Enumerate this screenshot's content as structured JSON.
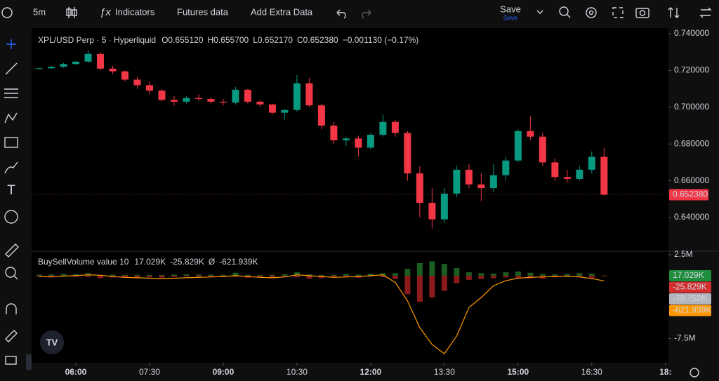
{
  "toolbar": {
    "interval": "5m",
    "indicators": "Indicators",
    "futures": "Futures data",
    "extra": "Add Extra Data",
    "save": "Save",
    "save_sub": "Save"
  },
  "chart_data": {
    "type": "candlestick",
    "title": "XPL/USD Perp · 5 · Hyperliquid",
    "ohlc_legend": [
      {
        "key": "O",
        "value": "0.655120"
      },
      {
        "key": "H",
        "value": "0.655700"
      },
      {
        "key": "L",
        "value": "0.652170"
      },
      {
        "key": "C",
        "value": "0.652380"
      }
    ],
    "change": "−0.001130 (−0.17%)",
    "up_color": "#089981",
    "down_color": "#f23645",
    "x": [
      5.25,
      5.5,
      5.75,
      6,
      6.25,
      6.5,
      6.75,
      7,
      7.25,
      7.5,
      7.75,
      8,
      8.25,
      8.5,
      8.75,
      9,
      9.25,
      9.5,
      9.75,
      10,
      10.25,
      10.5,
      10.75,
      11,
      11.25,
      11.5,
      11.75,
      12,
      12.25,
      12.5,
      12.75,
      13,
      13.25,
      13.5,
      13.75,
      14,
      14.25,
      14.5,
      14.75,
      15,
      15.25,
      15.5,
      15.75,
      16,
      16.25,
      16.5,
      16.75
    ],
    "open": [
      0.721,
      0.7212,
      0.722,
      0.7235,
      0.7248,
      0.729,
      0.721,
      0.7195,
      0.715,
      0.712,
      0.709,
      0.704,
      0.703,
      0.705,
      0.7045,
      0.703,
      0.7025,
      0.7095,
      0.703,
      0.7015,
      0.697,
      0.6985,
      0.713,
      0.701,
      0.69,
      0.682,
      0.683,
      0.678,
      0.685,
      0.692,
      0.686,
      0.664,
      0.648,
      0.639,
      0.653,
      0.666,
      0.658,
      0.656,
      0.663,
      0.671,
      0.687,
      0.684,
      0.67,
      0.662,
      0.661,
      0.666,
      0.673
    ],
    "high": [
      0.7215,
      0.7225,
      0.724,
      0.725,
      0.731,
      0.73,
      0.7225,
      0.72,
      0.7165,
      0.714,
      0.71,
      0.706,
      0.706,
      0.707,
      0.7055,
      0.7045,
      0.711,
      0.71,
      0.704,
      0.702,
      0.699,
      0.7175,
      0.716,
      0.702,
      0.692,
      0.684,
      0.6845,
      0.686,
      0.696,
      0.693,
      0.687,
      0.668,
      0.656,
      0.656,
      0.668,
      0.669,
      0.664,
      0.669,
      0.673,
      0.688,
      0.695,
      0.686,
      0.672,
      0.666,
      0.668,
      0.676,
      0.678
    ],
    "low": [
      0.7205,
      0.7208,
      0.7215,
      0.723,
      0.724,
      0.72,
      0.718,
      0.714,
      0.71,
      0.707,
      0.703,
      0.701,
      0.702,
      0.7035,
      0.702,
      0.701,
      0.7015,
      0.702,
      0.7,
      0.696,
      0.693,
      0.6975,
      0.7,
      0.688,
      0.68,
      0.679,
      0.673,
      0.677,
      0.684,
      0.684,
      0.66,
      0.64,
      0.634,
      0.637,
      0.651,
      0.656,
      0.649,
      0.654,
      0.66,
      0.67,
      0.682,
      0.668,
      0.66,
      0.659,
      0.66,
      0.664,
      0.652
    ],
    "close": [
      0.7212,
      0.722,
      0.7235,
      0.7248,
      0.729,
      0.721,
      0.7195,
      0.715,
      0.712,
      0.709,
      0.704,
      0.703,
      0.705,
      0.7045,
      0.703,
      0.7025,
      0.7095,
      0.703,
      0.7015,
      0.697,
      0.6985,
      0.713,
      0.701,
      0.69,
      0.682,
      0.683,
      0.678,
      0.685,
      0.692,
      0.686,
      0.664,
      0.648,
      0.639,
      0.653,
      0.666,
      0.658,
      0.656,
      0.663,
      0.671,
      0.687,
      0.684,
      0.67,
      0.662,
      0.661,
      0.666,
      0.673,
      0.6524
    ],
    "last_label": "0.652380",
    "xlim": [
      5.1,
      18.06
    ],
    "xticks": [
      {
        "value": 6,
        "label": "06:00"
      },
      {
        "value": 7.5,
        "label": "07:30"
      },
      {
        "value": 9,
        "label": "09:00"
      },
      {
        "value": 10.5,
        "label": "10:30"
      },
      {
        "value": 12,
        "label": "12:00"
      },
      {
        "value": 13.5,
        "label": "13:30"
      },
      {
        "value": 15,
        "label": "15:00"
      },
      {
        "value": 16.5,
        "label": "16:30"
      },
      {
        "value": 18,
        "label": "18:"
      }
    ],
    "ylim": [
      0.62206,
      0.74305
    ],
    "yticks": [
      {
        "value": 0.74,
        "label": "0.740000"
      },
      {
        "value": 0.72,
        "label": "0.720000"
      },
      {
        "value": 0.7,
        "label": "0.700000"
      },
      {
        "value": 0.68,
        "label": "0.680000"
      },
      {
        "value": 0.66,
        "label": "0.660000"
      },
      {
        "value": 0.64,
        "label": "0.640000"
      }
    ],
    "indicator": {
      "title": "BuySellVolume value 10",
      "avg_symbol": "Ø",
      "ylim": [
        -10380000,
        2920000
      ],
      "yticks": [
        {
          "value": 2500000,
          "label": "2.5M"
        },
        {
          "value": -7500000,
          "label": "-7.5M"
        }
      ],
      "delta_label": "-79.752K",
      "series": [
        {
          "color": "#4caf50",
          "bar_color": "#1b5e20",
          "label": "17.029K",
          "values": [
            120000,
            150000,
            200000,
            180000,
            300000,
            100000,
            120000,
            90000,
            110000,
            100000,
            90000,
            150000,
            170000,
            130000,
            120000,
            100000,
            350000,
            110000,
            90000,
            100000,
            180000,
            400000,
            150000,
            90000,
            110000,
            200000,
            130000,
            250000,
            300000,
            300000,
            800000,
            1500000,
            1700000,
            1400000,
            900000,
            400000,
            300000,
            250000,
            400000,
            500000,
            350000,
            200000,
            150000,
            200000,
            300000,
            250000,
            17029
          ]
        },
        {
          "color": "#f23645",
          "bar_color": "#8b1a1a",
          "label": "-25.829K",
          "values": [
            -100000,
            -90000,
            -80000,
            -120000,
            -150000,
            -300000,
            -200000,
            -250000,
            -220000,
            -200000,
            -240000,
            -150000,
            -100000,
            -130000,
            -150000,
            -160000,
            -120000,
            -250000,
            -180000,
            -220000,
            -150000,
            -200000,
            -350000,
            -300000,
            -200000,
            -150000,
            -250000,
            -100000,
            -180000,
            -400000,
            -2200000,
            -3100000,
            -2600000,
            -1800000,
            -900000,
            -500000,
            -400000,
            -300000,
            -200000,
            -250000,
            -300000,
            -350000,
            -200000,
            -150000,
            -150000,
            -300000,
            -25829
          ]
        },
        {
          "color": "#ff9800",
          "label": "-621.939K",
          "values": [
            -100000,
            -150000,
            -50000,
            0,
            100000,
            50000,
            -100000,
            -200000,
            -250000,
            -300000,
            -350000,
            -300000,
            -250000,
            -200000,
            -150000,
            -100000,
            0,
            -100000,
            -200000,
            -250000,
            -150000,
            100000,
            0,
            -100000,
            -200000,
            -150000,
            -100000,
            0,
            100000,
            -800000,
            -3000000,
            -6200000,
            -8200000,
            -9300000,
            -7200000,
            -3800000,
            -2600000,
            -1200000,
            -600000,
            -300000,
            -200000,
            -150000,
            -100000,
            -50000,
            -150000,
            -350000,
            -621939
          ]
        }
      ]
    }
  }
}
